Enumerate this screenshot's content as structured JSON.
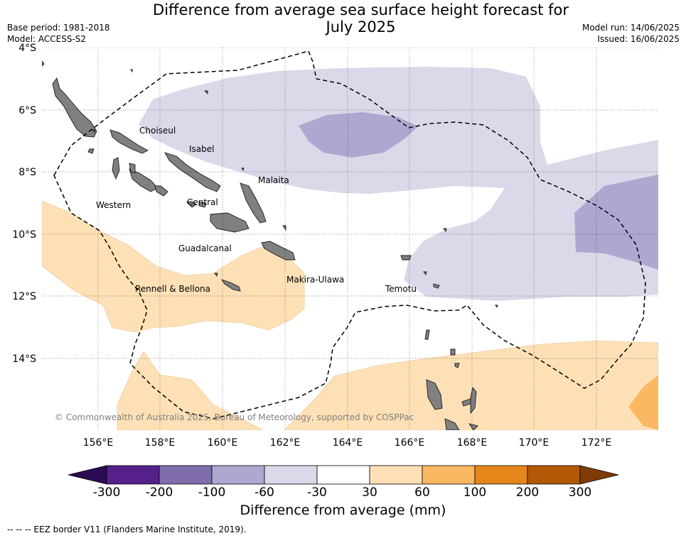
{
  "title_line1": "Difference from average sea surface height forecast for",
  "title_line2": "July 2025",
  "base_period": "Base period: 1981-2018",
  "model": "Model: ACCESS-S2",
  "model_run": "Model run: 14/06/2025",
  "issued": "Issued: 16/06/2025",
  "copyright": "© Commonwealth of Australia 2025, Bureau of Meteorology, supported by COSPPac",
  "footnote": "--  --  -- EEZ border V11 (Flanders Marine Institute, 2019).",
  "lat_labels": [
    "4°S",
    "6°S",
    "8°S",
    "10°S",
    "12°S",
    "14°S"
  ],
  "lon_labels": [
    "156°E",
    "158°E",
    "160°E",
    "162°E",
    "164°E",
    "166°E",
    "168°E",
    "170°E",
    "172°E"
  ],
  "provinces": [
    "Choiseul",
    "Isabel",
    "Malaita",
    "Western",
    "Central",
    "Guadalcanal",
    "Makira-Ulawa",
    "Rennell & Bellona",
    "Temotu"
  ],
  "colorbar": {
    "title": "Difference from average (mm)",
    "labels": [
      "-300",
      "-200",
      "-100",
      "-60",
      "-30",
      "30",
      "60",
      "100",
      "200",
      "300"
    ],
    "colors": [
      "#55208a",
      "#7f6dac",
      "#aea7d0",
      "#d9d9ea",
      "#ffffff",
      "#fde0b5",
      "#fbb862",
      "#e4861a",
      "#b35806"
    ],
    "extend_low_color": "#2d0b54",
    "extend_high_color": "#7f3b08"
  }
}
